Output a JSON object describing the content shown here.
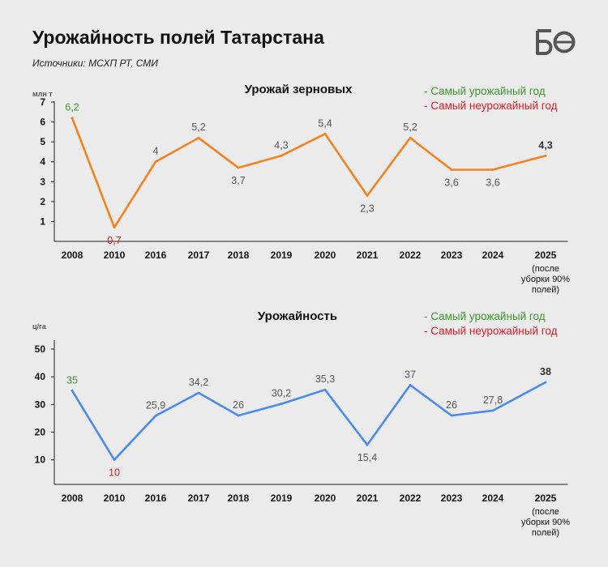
{
  "header": {
    "title": "Урожайность полей Татарстана",
    "source": "Источники: МСХП РТ, СМИ",
    "logo_text": "БО"
  },
  "legend": {
    "best": "- Самый урожайный год",
    "worst": "- Самый неурожайный год"
  },
  "colors": {
    "grain_line": "#f5821f",
    "yield_line": "#4a8bee",
    "best": "#3c9a2d",
    "worst": "#d4202a",
    "label": "#555555",
    "axis": "#222222"
  },
  "chart_data": [
    {
      "type": "line",
      "title": "Урожай зерновых",
      "ylabel": "млн т",
      "categories": [
        "2008",
        "2010",
        "2016",
        "2017",
        "2018",
        "2019",
        "2020",
        "2021",
        "2022",
        "2023",
        "2024",
        "2025"
      ],
      "last_category_note": [
        "(после",
        "уборки 90%",
        "полей)"
      ],
      "values": [
        6.2,
        0.7,
        4,
        5.2,
        3.7,
        4.3,
        5.4,
        2.3,
        5.2,
        3.6,
        3.6,
        4.3
      ],
      "value_labels": [
        "6,2",
        "0,7",
        "4",
        "5,2",
        "3,7",
        "4,3",
        "5,4",
        "2,3",
        "5,2",
        "3,6",
        "3,6",
        "4,3"
      ],
      "yticks": [
        1,
        2,
        3,
        4,
        5,
        6,
        7
      ],
      "ylim": [
        0,
        7
      ],
      "best_index": 0,
      "worst_index": 1,
      "latest_index": 11,
      "grid": false
    },
    {
      "type": "line",
      "title": "Урожайность",
      "ylabel": "ц/га",
      "categories": [
        "2008",
        "2010",
        "2016",
        "2017",
        "2018",
        "2019",
        "2020",
        "2021",
        "2022",
        "2023",
        "2024",
        "2025"
      ],
      "last_category_note": [
        "(после",
        "уборки 90%",
        "полей)"
      ],
      "values": [
        35,
        10,
        25.9,
        34.2,
        26,
        30.2,
        35.3,
        15.4,
        37,
        26,
        27.8,
        38
      ],
      "value_labels": [
        "35",
        "10",
        "25,9",
        "34,2",
        "26",
        "30,2",
        "35,3",
        "15,4",
        "37",
        "26",
        "27,8",
        "38"
      ],
      "yticks": [
        10,
        20,
        30,
        40,
        50
      ],
      "ylim": [
        2,
        50
      ],
      "best_index": 0,
      "worst_index": 1,
      "latest_index": 11,
      "grid": false
    }
  ]
}
